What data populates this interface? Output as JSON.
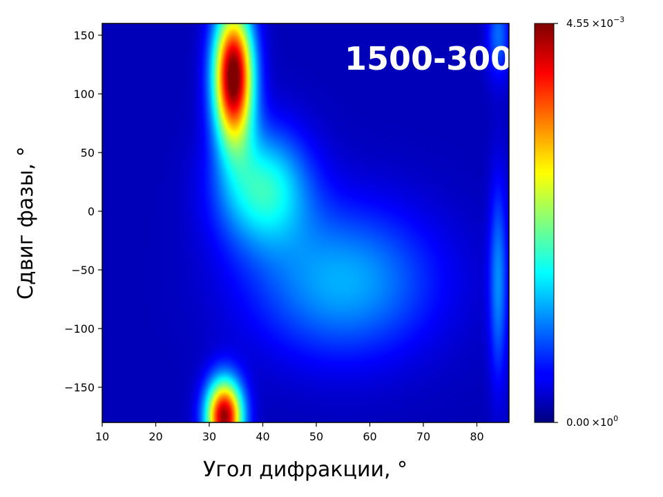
{
  "chart_data": {
    "type": "heatmap",
    "title": "1500-300",
    "xlabel": "Угол дифракции, °",
    "ylabel": "Сдвиг фазы, °",
    "xlim": [
      10,
      86
    ],
    "ylim": [
      -180,
      160
    ],
    "x_ticks": [
      10,
      20,
      30,
      40,
      50,
      60,
      70,
      80
    ],
    "x_tick_labels": [
      "10",
      "20",
      "30",
      "40",
      "50",
      "60",
      "70",
      "80"
    ],
    "y_ticks": [
      150,
      100,
      50,
      0,
      -50,
      -100,
      -150
    ],
    "y_tick_labels": [
      "150",
      "100",
      "50",
      "0",
      "−50",
      "−100",
      "−150"
    ],
    "colormap": "jet",
    "colorbar": {
      "min": 0,
      "max": 0.00455,
      "min_label_mantissa": "0.00",
      "min_label_times": "×10",
      "min_label_exp": "0",
      "max_label_mantissa": "4.55",
      "max_label_times": "×10",
      "max_label_exp": "−3"
    },
    "features": [
      {
        "x": 34.5,
        "y": 115,
        "peak": 0.0045,
        "sx": 2.6,
        "sy": 40
      },
      {
        "x": 32.8,
        "y": -175,
        "peak": 0.0042,
        "sx": 2.4,
        "sy": 22
      },
      {
        "x": 40.0,
        "y": 20,
        "peak": 0.0016,
        "sx": 6,
        "sy": 35
      },
      {
        "x": 55.0,
        "y": -60,
        "peak": 0.0011,
        "sx": 12,
        "sy": 45
      },
      {
        "x": 84.0,
        "y": -60,
        "peak": 0.0009,
        "sx": 1.2,
        "sy": 60
      },
      {
        "x": 84.0,
        "y": 150,
        "peak": 0.0008,
        "sx": 1.5,
        "sy": 25
      }
    ],
    "grid": false
  }
}
